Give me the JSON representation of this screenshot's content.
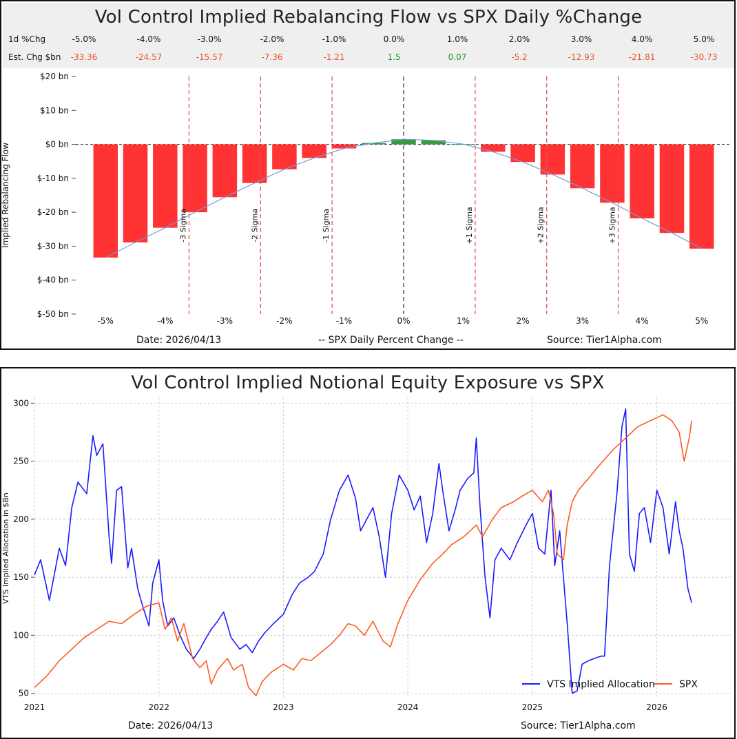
{
  "chart_data": [
    {
      "type": "bar",
      "title": "Vol Control Implied Rebalancing Flow vs SPX Daily %Change",
      "table": {
        "row1_label": "1d %Chg",
        "row2_label": "Est. Chg $bn",
        "pct": [
          "-5.0%",
          "-4.0%",
          "-3.0%",
          "-2.0%",
          "-1.0%",
          "0.0%",
          "1.0%",
          "2.0%",
          "3.0%",
          "4.0%",
          "5.0%"
        ],
        "est": [
          "-33.36",
          "-24.57",
          "-15.57",
          "-7.36",
          "-1.21",
          "1.5",
          "0.07",
          "-5.2",
          "-12.93",
          "-21.81",
          "-30.73"
        ]
      },
      "ylabel": "Implied Rebalancing Flow",
      "xlabel": "-- SPX Daily Percent Change --",
      "ylim": [
        -50,
        20
      ],
      "xlim": [
        -5.5,
        5.5
      ],
      "yticks": [
        20,
        10,
        0,
        -10,
        -20,
        -30,
        -40,
        -50
      ],
      "ytick_labels": [
        "$20 bn",
        "$10 bn",
        "$0 bn",
        "$-10 bn",
        "$-20 bn",
        "$-30 bn",
        "$-40 bn",
        "$-50 bn"
      ],
      "xticks": [
        -5,
        -4,
        -3,
        -2,
        -1,
        0,
        1,
        2,
        3,
        4,
        5
      ],
      "xtick_labels": [
        "-5%",
        "-4%",
        "-3%",
        "-2%",
        "-1%",
        "0%",
        "1%",
        "2%",
        "3%",
        "4%",
        "5%"
      ],
      "bars_x": [
        -5.0,
        -4.5,
        -4.0,
        -3.5,
        -3.0,
        -2.5,
        -2.0,
        -1.5,
        -1.0,
        -0.5,
        0.0,
        0.5,
        1.0,
        1.5,
        2.0,
        2.5,
        3.0,
        3.5,
        4.0,
        4.5,
        5.0
      ],
      "bars_values": [
        -33.36,
        -28.9,
        -24.57,
        -20.0,
        -15.57,
        -11.4,
        -7.36,
        -4.0,
        -1.21,
        0.4,
        1.5,
        1.2,
        0.07,
        -2.2,
        -5.2,
        -8.9,
        -12.93,
        -17.2,
        -21.81,
        -26.1,
        -30.73
      ],
      "sigma_lines": [
        {
          "x": -3.6,
          "label": "-3 Sigma"
        },
        {
          "x": -2.4,
          "label": "-2 Sigma"
        },
        {
          "x": -1.2,
          "label": "-1 Sigma"
        },
        {
          "x": 1.2,
          "label": "+1 Sigma"
        },
        {
          "x": 2.4,
          "label": "+2 Sigma"
        },
        {
          "x": 3.6,
          "label": "+3 Sigma"
        }
      ],
      "date": "Date: 2026/04/13",
      "source": "Source: Tier1Alpha.com",
      "colors": {
        "negative": "#ff3333",
        "positive": "#3a9a3a",
        "fit": "#6f9fe0",
        "sigma": "#e05555"
      }
    },
    {
      "type": "line",
      "title": "Vol Control Implied Notional Equity Exposure vs SPX",
      "ylabel": "VTS Implied Allocation in $Bn",
      "ylim": [
        45,
        305
      ],
      "xlim": [
        2021.0,
        2026.6
      ],
      "yticks": [
        50,
        100,
        150,
        200,
        250,
        300
      ],
      "xticks": [
        2021,
        2022,
        2023,
        2024,
        2025,
        2026
      ],
      "xtick_labels": [
        "2021",
        "2022",
        "2023",
        "2024",
        "2025",
        "2026"
      ],
      "legend_position": "bottom-right",
      "series": [
        {
          "name": "VTS Implied Allocation",
          "color": "#1a1aff",
          "x": [
            2021.0,
            2021.05,
            2021.12,
            2021.2,
            2021.25,
            2021.3,
            2021.35,
            2021.42,
            2021.47,
            2021.5,
            2021.55,
            2021.6,
            2021.62,
            2021.66,
            2021.7,
            2021.75,
            2021.78,
            2021.83,
            2021.87,
            2021.92,
            2021.95,
            2022.0,
            2022.03,
            2022.07,
            2022.12,
            2022.17,
            2022.22,
            2022.28,
            2022.33,
            2022.38,
            2022.42,
            2022.47,
            2022.52,
            2022.58,
            2022.65,
            2022.7,
            2022.75,
            2022.8,
            2022.85,
            2022.92,
            2023.0,
            2023.07,
            2023.13,
            2023.2,
            2023.25,
            2023.32,
            2023.38,
            2023.45,
            2023.52,
            2023.58,
            2023.62,
            2023.67,
            2023.72,
            2023.77,
            2023.82,
            2023.87,
            2023.93,
            2024.0,
            2024.05,
            2024.1,
            2024.15,
            2024.2,
            2024.25,
            2024.28,
            2024.33,
            2024.38,
            2024.42,
            2024.48,
            2024.53,
            2024.55,
            2024.58,
            2024.62,
            2024.66,
            2024.7,
            2024.75,
            2024.82,
            2024.88,
            2024.95,
            2025.0,
            2025.05,
            2025.1,
            2025.15,
            2025.18,
            2025.22,
            2025.25,
            2025.28,
            2025.32,
            2025.36,
            2025.4,
            2025.45,
            2025.5,
            2025.55,
            2025.58,
            2025.62,
            2025.68,
            2025.72,
            2025.75,
            2025.78,
            2025.82,
            2025.86,
            2025.9,
            2025.95,
            2026.0,
            2026.05,
            2026.1,
            2026.15,
            2026.18,
            2026.21,
            2026.25,
            2026.28
          ],
          "values": [
            152,
            165,
            130,
            175,
            160,
            210,
            232,
            222,
            272,
            255,
            265,
            185,
            162,
            225,
            228,
            158,
            175,
            140,
            125,
            108,
            145,
            165,
            130,
            108,
            115,
            100,
            88,
            80,
            88,
            98,
            105,
            112,
            120,
            98,
            88,
            92,
            85,
            95,
            102,
            110,
            118,
            135,
            145,
            150,
            155,
            170,
            200,
            225,
            238,
            218,
            190,
            200,
            210,
            185,
            150,
            205,
            238,
            225,
            208,
            220,
            180,
            205,
            248,
            225,
            190,
            208,
            225,
            235,
            240,
            270,
            210,
            150,
            115,
            165,
            175,
            165,
            180,
            195,
            205,
            175,
            170,
            225,
            160,
            190,
            150,
            110,
            50,
            52,
            75,
            78,
            80,
            82,
            82,
            160,
            222,
            280,
            295,
            170,
            155,
            205,
            210,
            180,
            225,
            210,
            170,
            215,
            190,
            175,
            140,
            128
          ]
        },
        {
          "name": "SPX",
          "color": "#ff5a1f",
          "x": [
            2021.0,
            2021.1,
            2021.2,
            2021.3,
            2021.4,
            2021.5,
            2021.6,
            2021.7,
            2021.8,
            2021.9,
            2022.0,
            2022.05,
            2022.1,
            2022.15,
            2022.2,
            2022.27,
            2022.33,
            2022.38,
            2022.42,
            2022.47,
            2022.55,
            2022.6,
            2022.67,
            2022.72,
            2022.78,
            2022.83,
            2022.9,
            2023.0,
            2023.08,
            2023.15,
            2023.22,
            2023.3,
            2023.38,
            2023.45,
            2023.52,
            2023.58,
            2023.65,
            2023.72,
            2023.8,
            2023.86,
            2023.92,
            2024.0,
            2024.1,
            2024.2,
            2024.28,
            2024.35,
            2024.45,
            2024.55,
            2024.6,
            2024.68,
            2024.75,
            2024.85,
            2024.92,
            2025.0,
            2025.08,
            2025.13,
            2025.17,
            2025.2,
            2025.25,
            2025.28,
            2025.32,
            2025.37,
            2025.45,
            2025.55,
            2025.65,
            2025.75,
            2025.85,
            2025.95,
            2026.05,
            2026.12,
            2026.18,
            2026.22,
            2026.26,
            2026.28
          ],
          "values": [
            55,
            65,
            78,
            88,
            98,
            105,
            112,
            110,
            118,
            125,
            128,
            105,
            115,
            95,
            110,
            80,
            72,
            78,
            58,
            70,
            80,
            70,
            75,
            55,
            48,
            60,
            68,
            75,
            70,
            80,
            78,
            85,
            92,
            100,
            110,
            108,
            100,
            112,
            95,
            90,
            110,
            130,
            148,
            162,
            170,
            178,
            185,
            195,
            185,
            200,
            210,
            215,
            220,
            225,
            215,
            225,
            205,
            170,
            165,
            195,
            215,
            225,
            235,
            248,
            260,
            270,
            280,
            285,
            290,
            285,
            275,
            250,
            270,
            285
          ]
        }
      ],
      "date": "Date: 2026/04/13",
      "source": "Source: Tier1Alpha.com"
    }
  ]
}
